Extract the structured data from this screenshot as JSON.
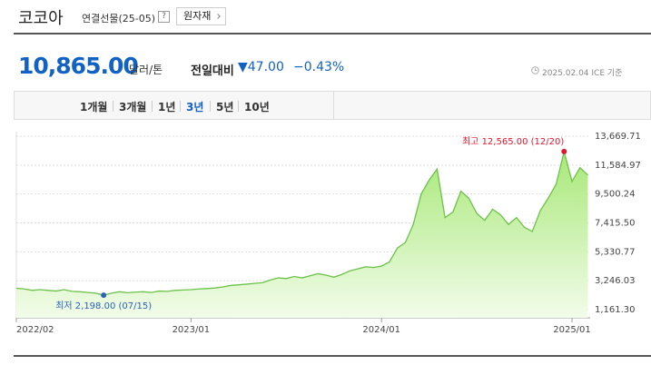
{
  "header": {
    "title": "코코아",
    "subtitle": "연결선물(25-05)",
    "help": "?",
    "category_button": "원자재"
  },
  "quote": {
    "price": "10,865.00",
    "unit": "달러/톤",
    "change_label": "전일대비",
    "change": "▼47.00",
    "change_pct": "−0.43%",
    "date_note": "2025.02.04 ICE 기준"
  },
  "tabs": {
    "items": [
      "1개월",
      "3개월",
      "1년",
      "3년",
      "5년",
      "10년"
    ],
    "selected": 3
  },
  "chart_data": {
    "type": "area",
    "categories": [
      "2022/02",
      null,
      null,
      null,
      null,
      null,
      null,
      null,
      null,
      null,
      null,
      null,
      null,
      null,
      null,
      null,
      null,
      null,
      null,
      null,
      null,
      null,
      "2023/01",
      null,
      null,
      null,
      null,
      null,
      null,
      null,
      null,
      null,
      null,
      null,
      null,
      null,
      null,
      null,
      null,
      null,
      null,
      null,
      null,
      null,
      null,
      null,
      "2024/01",
      null,
      null,
      null,
      null,
      null,
      null,
      null,
      null,
      null,
      null,
      null,
      null,
      null,
      null,
      null,
      null,
      null,
      null,
      null,
      null,
      null,
      null,
      null,
      "2025/01",
      null,
      null
    ],
    "series": [
      {
        "color": "#6cc24a",
        "values": [
          2700,
          2650,
          2550,
          2600,
          2550,
          2500,
          2600,
          2480,
          2450,
          2400,
          2350,
          2198,
          2350,
          2450,
          2380,
          2420,
          2450,
          2400,
          2500,
          2480,
          2550,
          2580,
          2600,
          2650,
          2680,
          2720,
          2800,
          2900,
          2950,
          3000,
          3050,
          3100,
          3300,
          3450,
          3400,
          3550,
          3450,
          3600,
          3750,
          3650,
          3500,
          3700,
          3950,
          4100,
          4250,
          4200,
          4300,
          4600,
          5600,
          6000,
          7300,
          9500,
          10500,
          11300,
          7800,
          8200,
          9700,
          9200,
          8100,
          7600,
          8400,
          8000,
          7300,
          7800,
          7100,
          6800,
          8300,
          9200,
          10200,
          12565,
          10400,
          11400,
          10865
        ]
      }
    ],
    "ylim": [
      1161.3,
      13669.71
    ],
    "yticks": [
      {
        "value": 1161.3,
        "label": "1,161.30"
      },
      {
        "value": 3246.03,
        "label": "3,246.03"
      },
      {
        "value": 5330.77,
        "label": "5,330.77"
      },
      {
        "value": 7415.5,
        "label": "7,415.50"
      },
      {
        "value": 9500.24,
        "label": "9,500.24"
      },
      {
        "value": 11584.97,
        "label": "11,584.97"
      },
      {
        "value": 13669.71,
        "label": "13,669.71"
      }
    ],
    "grid": true,
    "annotations": {
      "high": "최고 12,565.00 (12/20)",
      "high_color": "#e0162b",
      "low": "최저 2,198.00 (07/15)",
      "low_color": "#2a62b8"
    }
  }
}
